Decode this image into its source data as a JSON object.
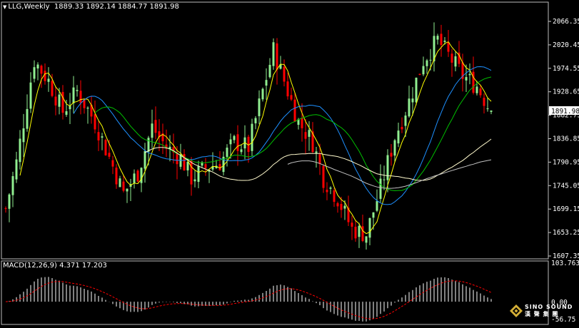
{
  "header": {
    "symbol_timeframe": "LLG,Weekly",
    "ohlc": "1889.33 1892.14 1884.77 1891.98"
  },
  "macd": {
    "label": "MACD(12,26,9) 4.371 17.203",
    "axis_top": "103.763",
    "axis_zero": "0.00",
    "axis_bottom": "-56.75"
  },
  "price_axis_ticks": [
    "2066.35",
    "2020.45",
    "1974.55",
    "1928.65",
    "1882.75",
    "1836.85",
    "1790.95",
    "1745.05",
    "1699.15",
    "1653.25",
    "1607.35"
  ],
  "current_price_label": "1891.98",
  "logo": {
    "line1": "SINO SOUND",
    "line2": "漢 聲 集 團"
  },
  "colors": {
    "background": "#000000",
    "up": "#90ee90",
    "down": "#ff0000",
    "ma_fast": "#ffff00",
    "ma_mid": "#1e90ff",
    "ma_green": "#00c000",
    "ma_long": "#fffacd",
    "ma_longest": "#c0c0c0",
    "macd_hist": "#ffffff",
    "macd_signal": "#ff0000"
  },
  "chart_data": {
    "type": "candlestick",
    "symbol": "LLG",
    "timeframe": "Weekly",
    "ylim": [
      1607.35,
      2066.35
    ],
    "current": 1891.98,
    "macd_ylim": [
      -56.75,
      103.763
    ]
  }
}
